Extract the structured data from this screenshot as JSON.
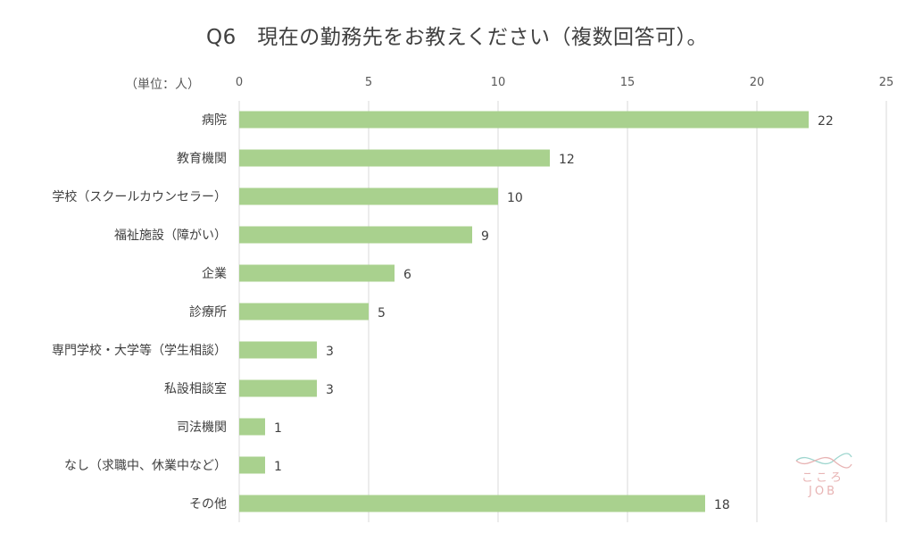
{
  "title": "Q6　現在の勤務先をお教えください（複数回答可）。",
  "unit_label": "（単位：人）",
  "chart_data": {
    "type": "bar",
    "orientation": "horizontal",
    "categories": [
      "病院",
      "教育機関",
      "学校（スクールカウンセラー）",
      "福祉施設（障がい）",
      "企業",
      "診療所",
      "専門学校・大学等（学生相談）",
      "私設相談室",
      "司法機関",
      "なし（求職中、休業中など）",
      "その他"
    ],
    "values": [
      22,
      12,
      10,
      9,
      6,
      5,
      3,
      3,
      1,
      1,
      18
    ],
    "xticks": [
      "0",
      "5",
      "10",
      "15",
      "20",
      "25"
    ],
    "xlim": [
      0,
      25
    ],
    "grid": true,
    "legend": "none",
    "bar_color": "#a9d18e",
    "grid_color": "#d9d9d9"
  },
  "logo": {
    "line1": "こころ",
    "line2": "JOB",
    "colors": {
      "wave1": "#9fd6cf",
      "wave2": "#e8b4b4"
    }
  }
}
